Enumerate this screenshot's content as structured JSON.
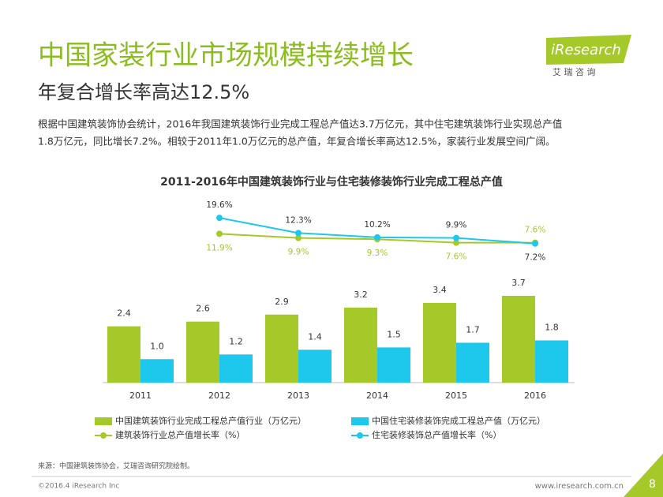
{
  "header": {
    "title": "中国家装行业市场规模持续增长",
    "subtitle": "年复合增长率高达12.5%",
    "intro": [
      "根据中国建筑装饰协会统计，2016年我国建筑装饰行业完成工程总产值达3.7万亿元，其中住宅建筑装饰行业实现总产值",
      "1.8万亿元，同比增长7.2%。相较于2011年1.0万亿元的总产值，年复合增长率高达12.5%，家装行业发展空间广阔。"
    ],
    "logo": "iResearch",
    "logo_cn": "艾 瑞 咨 询"
  },
  "chart_data": {
    "type": "bar",
    "title": "2011-2016年中国建筑装饰行业与住宅装修装饰行业完成工程总产值",
    "categories": [
      "2011",
      "2012",
      "2013",
      "2014",
      "2015",
      "2016"
    ],
    "ylim": [
      0,
      7.5
    ],
    "y2lim": [
      -60,
      25
    ],
    "series": [
      {
        "name": "中国建筑装饰行业完成工程总产值行业（万亿元）",
        "color": "#a6c92a",
        "type": "bar",
        "values": [
          2.4,
          2.6,
          2.9,
          3.2,
          3.4,
          3.7
        ]
      },
      {
        "name": "中国住宅装修装饰完成工程总产值（万亿元）",
        "color": "#1ec8ec",
        "type": "bar",
        "values": [
          1.0,
          1.2,
          1.4,
          1.5,
          1.7,
          1.8
        ],
        "value_labels": [
          "1.0",
          "1.2",
          "1.4",
          "1.5",
          "1.7",
          "1.8"
        ]
      },
      {
        "name": "建筑装饰行业总产值增长率（%）",
        "color": "#a6c92a",
        "type": "line",
        "axis": "y2",
        "values": [
          null,
          11.9,
          9.9,
          9.3,
          7.6,
          7.6
        ],
        "value_labels": [
          null,
          "11.9%",
          "9.9%",
          "9.3%",
          "7.6%",
          "7.6%"
        ]
      },
      {
        "name": "住宅装修装饰总产值增长率（%）",
        "color": "#1ec8ec",
        "type": "line",
        "axis": "y2",
        "values": [
          null,
          19.6,
          12.3,
          10.2,
          9.9,
          7.2
        ],
        "value_labels": [
          null,
          "19.6%",
          "12.3%",
          "10.2%",
          "9.9%",
          "7.2%"
        ]
      }
    ]
  },
  "footer": {
    "source": "来源：中国建筑装饰协会，艾瑞咨询研究院绘制。",
    "copyright": "©2016.4 iResearch Inc",
    "url": "www.iresearch.com.cn",
    "page": "8"
  }
}
